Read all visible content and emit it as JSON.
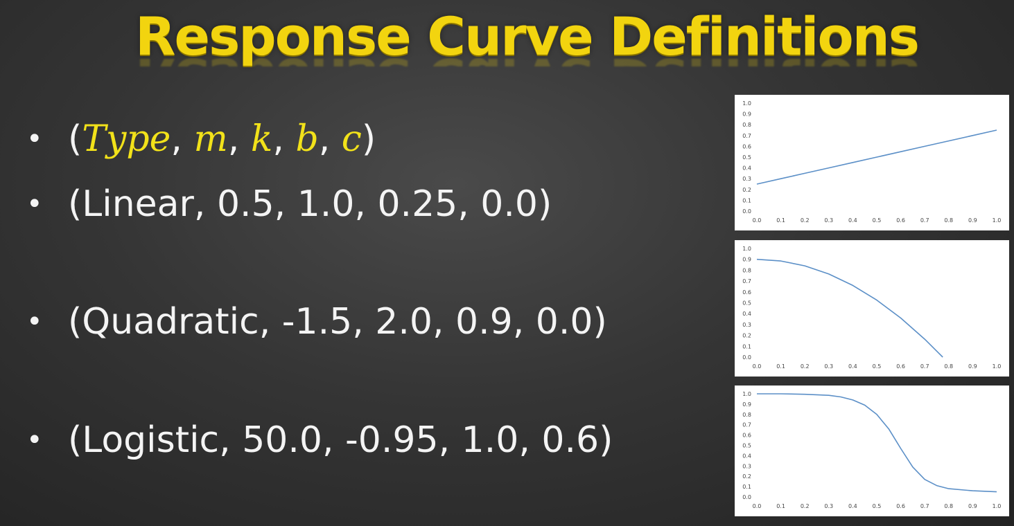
{
  "slide": {
    "title": "Response Curve Definitions"
  },
  "bullets": {
    "signature": {
      "open": "(",
      "type": "Type",
      "m": "m",
      "k": "k",
      "b": "b",
      "c": "c",
      "sep": ", ",
      "close": ")"
    },
    "linear": "(Linear, 0.5, 1.0, 0.25, 0.0)",
    "quadratic": "(Quadratic, -1.5, 2.0, 0.9, 0.0)",
    "logistic": "(Logistic, 50.0, -0.95, 1.0, 0.6)"
  },
  "chart_data": [
    {
      "type": "line",
      "x_ticks": [
        "0.0",
        "0.1",
        "0.2",
        "0.3",
        "0.4",
        "0.5",
        "0.6",
        "0.7",
        "0.8",
        "0.9",
        "1.0"
      ],
      "y_ticks": [
        "0.0",
        "0.1",
        "0.2",
        "0.3",
        "0.4",
        "0.5",
        "0.6",
        "0.7",
        "0.8",
        "0.9",
        "1.0"
      ],
      "xlim": [
        0,
        1
      ],
      "ylim": [
        0,
        1
      ],
      "line_color": "#5b8fc7",
      "x": [
        0.0,
        0.1,
        0.2,
        0.3,
        0.4,
        0.5,
        0.6,
        0.7,
        0.8,
        0.9,
        1.0
      ],
      "y": [
        0.25,
        0.3,
        0.35,
        0.4,
        0.45,
        0.5,
        0.55,
        0.6,
        0.65,
        0.7,
        0.75
      ]
    },
    {
      "type": "line",
      "x_ticks": [
        "0.0",
        "0.1",
        "0.2",
        "0.3",
        "0.4",
        "0.5",
        "0.6",
        "0.7",
        "0.8",
        "0.9",
        "1.0"
      ],
      "y_ticks": [
        "0.0",
        "0.1",
        "0.2",
        "0.3",
        "0.4",
        "0.5",
        "0.6",
        "0.7",
        "0.8",
        "0.9",
        "1.0"
      ],
      "xlim": [
        0,
        1
      ],
      "ylim": [
        0,
        1
      ],
      "line_color": "#5b8fc7",
      "x": [
        0.0,
        0.1,
        0.2,
        0.3,
        0.4,
        0.5,
        0.6,
        0.7,
        0.775
      ],
      "y": [
        0.9,
        0.885,
        0.84,
        0.765,
        0.66,
        0.525,
        0.36,
        0.165,
        0.0
      ]
    },
    {
      "type": "line",
      "x_ticks": [
        "0.0",
        "0.1",
        "0.2",
        "0.3",
        "0.4",
        "0.5",
        "0.6",
        "0.7",
        "0.8",
        "0.9",
        "1.0"
      ],
      "y_ticks": [
        "0.0",
        "0.1",
        "0.2",
        "0.3",
        "0.4",
        "0.5",
        "0.6",
        "0.7",
        "0.8",
        "0.9",
        "1.0"
      ],
      "xlim": [
        0,
        1
      ],
      "ylim": [
        0,
        1
      ],
      "line_color": "#5b8fc7",
      "x": [
        0.0,
        0.1,
        0.2,
        0.3,
        0.35,
        0.4,
        0.45,
        0.5,
        0.55,
        0.6,
        0.65,
        0.7,
        0.75,
        0.8,
        0.9,
        1.0
      ],
      "y": [
        1.0,
        1.0,
        0.995,
        0.985,
        0.97,
        0.94,
        0.89,
        0.8,
        0.66,
        0.47,
        0.29,
        0.17,
        0.11,
        0.08,
        0.06,
        0.05
      ]
    }
  ]
}
